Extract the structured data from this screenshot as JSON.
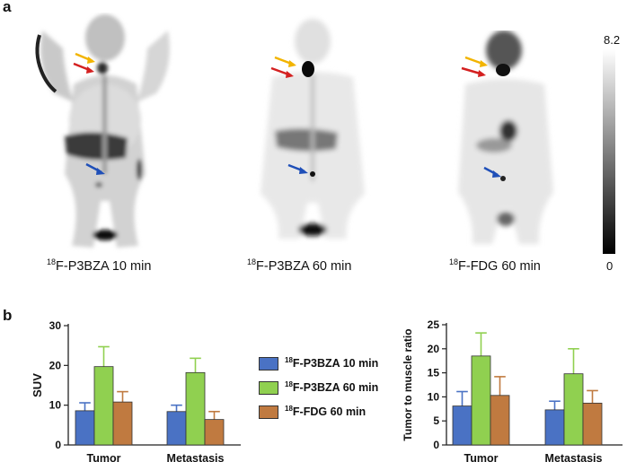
{
  "panel_a": {
    "label": "a",
    "scans": [
      {
        "isotope": "18",
        "name": "F-P3BZA 10 min"
      },
      {
        "isotope": "18",
        "name": "F-P3BZA 60 min"
      },
      {
        "isotope": "18",
        "name": "F-FDG 60 min"
      }
    ],
    "colorbar": {
      "max": "8.2",
      "min": "0"
    }
  },
  "panel_b": {
    "label": "b"
  },
  "legend": [
    {
      "isotope": "18",
      "name": "F-P3BZA 10 min",
      "color": "#4a72c4"
    },
    {
      "isotope": "18",
      "name": "F-P3BZA 60 min",
      "color": "#90d050"
    },
    {
      "isotope": "18",
      "name": "F-FDG 60 min",
      "color": "#c07a40"
    }
  ],
  "colors": {
    "series": [
      "#4a72c4",
      "#90d050",
      "#c07a40"
    ],
    "arrows": {
      "yellow": "#f2b400",
      "red": "#d42020",
      "blue": "#1f4fb8"
    }
  },
  "chart_data": [
    {
      "type": "bar",
      "title": "",
      "xlabel": "",
      "ylabel": "SUV",
      "categories": [
        "Tumor",
        "Metastasis"
      ],
      "ylim": [
        0,
        30
      ],
      "yticks": [
        0,
        10,
        20,
        30
      ],
      "series": [
        {
          "name": "18F-P3BZA 10 min",
          "values": [
            8.6,
            8.4
          ],
          "errors": [
            2.0,
            1.6
          ]
        },
        {
          "name": "18F-P3BZA 60 min",
          "values": [
            19.7,
            18.2
          ],
          "errors": [
            5.0,
            3.6
          ]
        },
        {
          "name": "18F-FDG 60 min",
          "values": [
            10.8,
            6.4
          ],
          "errors": [
            2.6,
            2.0
          ]
        }
      ]
    },
    {
      "type": "bar",
      "title": "",
      "xlabel": "",
      "ylabel": "Tumor to muscle ratio",
      "categories": [
        "Tumor",
        "Metastasis"
      ],
      "ylim": [
        0,
        25
      ],
      "yticks": [
        0,
        5,
        10,
        15,
        20,
        25
      ],
      "series": [
        {
          "name": "18F-P3BZA 10 min",
          "values": [
            8.1,
            7.3
          ],
          "errors": [
            3.0,
            1.8
          ]
        },
        {
          "name": "18F-P3BZA 60 min",
          "values": [
            18.5,
            14.8
          ],
          "errors": [
            4.8,
            5.2
          ]
        },
        {
          "name": "18F-FDG 60 min",
          "values": [
            10.3,
            8.7
          ],
          "errors": [
            3.9,
            2.6
          ]
        }
      ]
    }
  ]
}
